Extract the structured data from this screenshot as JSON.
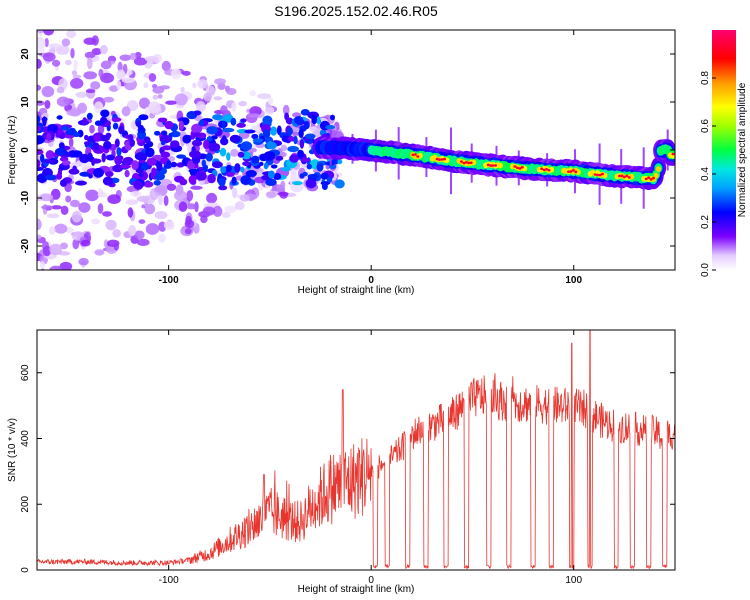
{
  "title": "S196.2025.152.02.46.R05",
  "chart_data": [
    {
      "type": "heatmap",
      "xlabel": "Height of straight line (km)",
      "ylabel": "Frequency (Hz)",
      "xlim": [
        -165,
        150
      ],
      "ylim": [
        -25,
        25
      ],
      "x_ticks": [
        "-100",
        "0",
        "100"
      ],
      "y_ticks": [
        "20",
        "10",
        "0",
        "-10",
        "-20"
      ],
      "colorbar": {
        "label": "Normalized spectral amplitude",
        "range": [
          0,
          1
        ],
        "ticks": [
          "0.0",
          "0.2",
          "0.4",
          "0.6",
          "0.8"
        ],
        "colors": [
          "#ffffff",
          "#7b00ff",
          "#0000ff",
          "#00d8ff",
          "#00ff40",
          "#e8ff00",
          "#ff9900",
          "#ff0000",
          "#ff0060"
        ]
      },
      "ridge": {
        "description_points_x": [
          -165,
          -20,
          0,
          20,
          40,
          60,
          80,
          100,
          120,
          140,
          145,
          150
        ],
        "description_points_y": [
          1,
          0.5,
          0,
          -1,
          -2.3,
          -3.2,
          -4.0,
          -4.4,
          -5.4,
          -6.0,
          0,
          -1
        ]
      }
    },
    {
      "type": "line",
      "xlabel": "Height of straight line (km)",
      "ylabel": "SNR (10 * v/v)",
      "xlim": [
        -165,
        150
      ],
      "ylim": [
        0,
        730
      ],
      "x_ticks": [
        "-100",
        "0",
        "100"
      ],
      "y_ticks": [
        "0",
        "200",
        "400",
        "600"
      ],
      "color": "#e8352e",
      "series": [
        {
          "x": [
            -165,
            -140,
            -120,
            -100,
            -90,
            -80,
            -70,
            -60,
            -50,
            -45,
            -40,
            -35,
            -30,
            -25,
            -20,
            -15,
            -10,
            -5,
            0,
            5,
            10,
            15,
            20,
            25,
            30,
            40,
            45,
            50,
            55,
            60,
            70,
            80,
            90,
            100,
            105,
            108,
            110,
            115,
            120,
            130,
            140,
            145,
            150
          ],
          "y": [
            25,
            25,
            22,
            22,
            30,
            50,
            90,
            130,
            175,
            165,
            150,
            145,
            190,
            220,
            250,
            260,
            270,
            285,
            300,
            320,
            340,
            370,
            410,
            430,
            440,
            470,
            500,
            520,
            530,
            520,
            510,
            505,
            500,
            495,
            490,
            480,
            470,
            450,
            440,
            430,
            420,
            400,
            420
          ]
        }
      ],
      "dropouts_x": [
        2,
        8,
        18,
        27,
        37,
        47,
        58,
        68,
        80,
        89,
        99,
        108,
        121,
        129,
        137,
        145
      ]
    }
  ]
}
